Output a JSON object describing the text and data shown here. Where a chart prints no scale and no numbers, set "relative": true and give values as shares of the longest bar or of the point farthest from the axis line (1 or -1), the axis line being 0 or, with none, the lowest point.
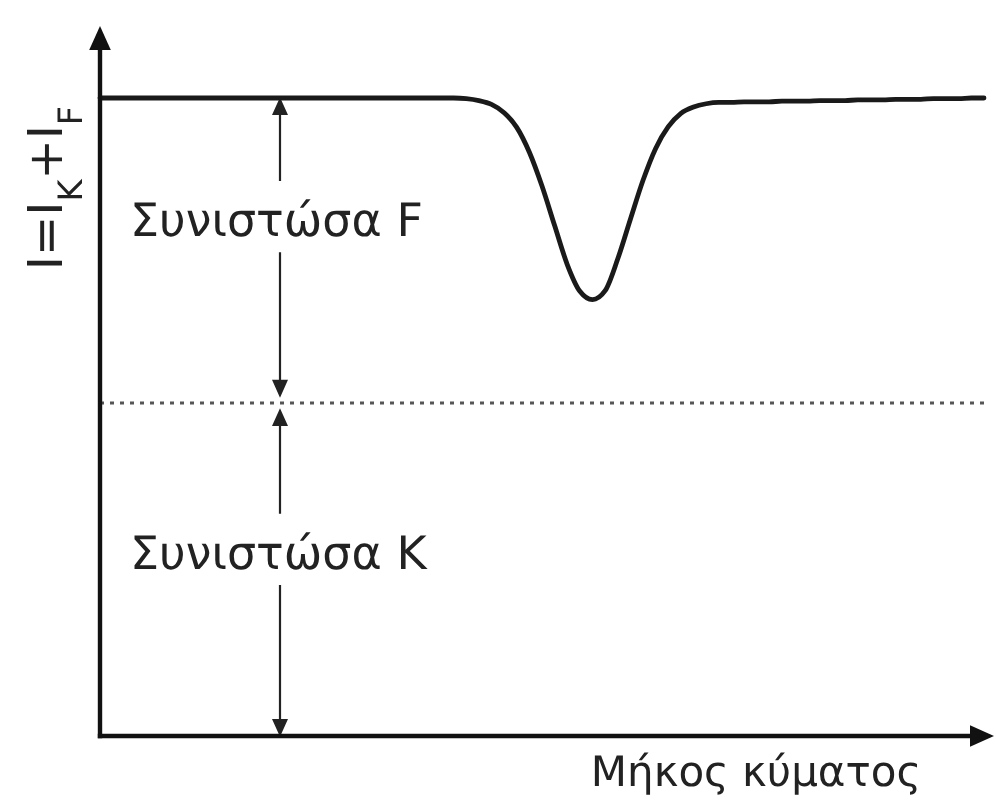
{
  "chart_data": {
    "type": "line",
    "xlabel": "Μήκος κύματος",
    "ylabel": "I=I$_{K}$+I$_{F}$",
    "relative": true,
    "categories": [
      null,
      null,
      null,
      null,
      null,
      null,
      null,
      null,
      null,
      null,
      null,
      null,
      null,
      null,
      null,
      null,
      null,
      null,
      null,
      null,
      null,
      null,
      null,
      null,
      null,
      null,
      null,
      null,
      null,
      null,
      null,
      null,
      null,
      null,
      null,
      null,
      null,
      null,
      null,
      null,
      null,
      null,
      null,
      null,
      null,
      null,
      null,
      null,
      null,
      null,
      null,
      null,
      null,
      null,
      null,
      null,
      null,
      null,
      null,
      null,
      null,
      null,
      null,
      null,
      null,
      null,
      null,
      null,
      null,
      null,
      null
    ],
    "series": [
      {
        "color": "#1a1a1a",
        "values": [
          1,
          1,
          1,
          1,
          1,
          1,
          1,
          1,
          1,
          1,
          1,
          1,
          1,
          1,
          1,
          1,
          1,
          1,
          1,
          1,
          1,
          1,
          1,
          1,
          1,
          1,
          1,
          1,
          1,
          0.999,
          0.996,
          0.99,
          0.977,
          0.954,
          0.915,
          0.862,
          0.8,
          0.739,
          0.697,
          0.684,
          0.698,
          0.748,
          0.81,
          0.871,
          0.921,
          0.955,
          0.976,
          0.986,
          0.991,
          0.993,
          0.993,
          0.994,
          0.994,
          0.994,
          0.995,
          0.995,
          0.995,
          0.996,
          0.996,
          0.996,
          0.997,
          0.997,
          0.997,
          0.998,
          0.998,
          0.998,
          0.999,
          0.999,
          0.999,
          1,
          1
        ]
      }
    ],
    "line_style": "solid",
    "ref_lines": [
      {
        "axis": "y",
        "value": 0.522,
        "line_style": "dotted",
        "color": "#555555"
      }
    ],
    "annotations": [
      "Συνιστώσα F",
      "Συνιστώσα K"
    ]
  }
}
